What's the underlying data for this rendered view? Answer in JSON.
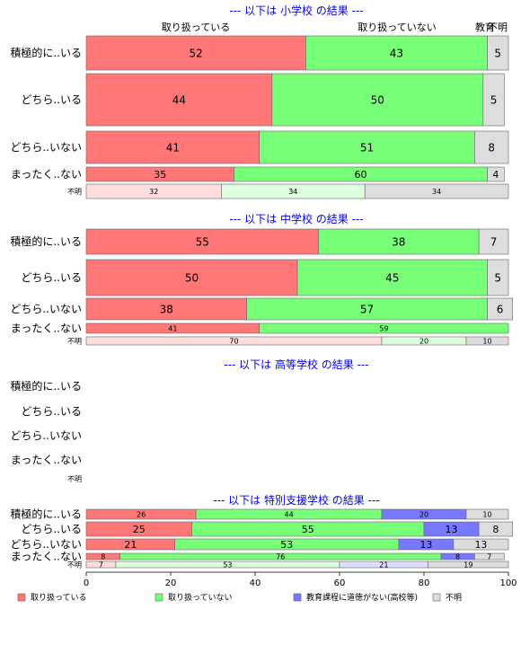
{
  "chart_data": {
    "type": "bar",
    "orientation": "horizontal",
    "stacked": "percent",
    "xlim": [
      0,
      100
    ],
    "xticks": [
      "0",
      "20",
      "40",
      "60",
      "80",
      "100"
    ],
    "top_labels": [
      "取り扱っている",
      "取り扱っていない",
      "教育",
      "不明"
    ],
    "legend": {
      "position": "bottom",
      "items": [
        {
          "label": "取り扱っている",
          "color": "#ff7777"
        },
        {
          "label": "取り扱っていない",
          "color": "#77ff77"
        },
        {
          "label": "教育課程に道徳がない(高校等)",
          "color": "#7777ff"
        },
        {
          "label": "不明",
          "color": "#dddddd"
        }
      ]
    },
    "colors": {
      "handled": "#ff7777",
      "not_handled": "#77ff77",
      "no_moral": "#7777ff",
      "unknown": "#dddddd",
      "handled_light": "#ffdddd",
      "not_handled_light": "#ddffdd",
      "no_moral_light": "#ddddff",
      "title": "#0000ee"
    },
    "panels": [
      {
        "title": "--- 以下は 小学校 の結果 ---",
        "rows": [
          {
            "label": "積極的に..いる",
            "values": [
              52,
              43,
              0,
              5
            ]
          },
          {
            "label": "どちら..いる",
            "values": [
              44,
              50,
              0,
              5
            ]
          },
          {
            "label": "どちら..いない",
            "values": [
              41,
              51,
              0,
              8
            ]
          },
          {
            "label": "まったく..ない",
            "values": [
              35,
              60,
              0,
              4
            ]
          },
          {
            "label": "不明",
            "values": [
              32,
              34,
              0,
              34
            ]
          }
        ]
      },
      {
        "title": "--- 以下は 中学校 の結果 ---",
        "rows": [
          {
            "label": "積極的に..いる",
            "values": [
              55,
              38,
              0,
              7
            ]
          },
          {
            "label": "どちら..いる",
            "values": [
              50,
              45,
              0,
              5
            ]
          },
          {
            "label": "どちら..いない",
            "values": [
              38,
              57,
              0,
              6
            ]
          },
          {
            "label": "まったく..ない",
            "values": [
              41,
              59,
              0,
              0
            ]
          },
          {
            "label": "不明",
            "values": [
              70,
              20,
              0,
              10
            ]
          }
        ]
      },
      {
        "title": "--- 以下は 高等学校 の結果 ---",
        "rows": [
          {
            "label": "積極的に..いる",
            "values": [
              0,
              0,
              0,
              0
            ]
          },
          {
            "label": "どちら..いる",
            "values": [
              0,
              0,
              0,
              0
            ]
          },
          {
            "label": "どちら..いない",
            "values": [
              0,
              0,
              0,
              0
            ]
          },
          {
            "label": "まったく..ない",
            "values": [
              0,
              0,
              0,
              0
            ]
          },
          {
            "label": "不明",
            "values": [
              0,
              0,
              0,
              0
            ]
          }
        ]
      },
      {
        "title": "--- 以下は 特別支援学校 の結果 ---",
        "rows": [
          {
            "label": "積極的に..いる",
            "values": [
              26,
              44,
              20,
              10
            ]
          },
          {
            "label": "どちら..いる",
            "values": [
              25,
              55,
              13,
              8
            ]
          },
          {
            "label": "どちら..いない",
            "values": [
              21,
              53,
              13,
              13
            ]
          },
          {
            "label": "まったく..ない",
            "values": [
              8,
              76,
              8,
              7
            ]
          },
          {
            "label": "不明",
            "values": [
              7,
              53,
              21,
              19
            ]
          }
        ]
      }
    ]
  }
}
